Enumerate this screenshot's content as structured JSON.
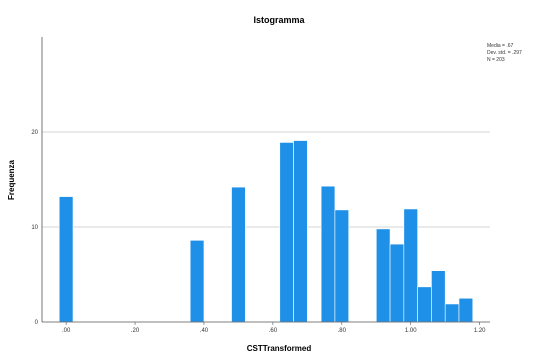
{
  "chart_data": {
    "type": "bar",
    "title": "Istogramma",
    "xlabel": "CSTTransformed",
    "ylabel": "Frequenza",
    "xlim": [
      -0.07,
      1.23
    ],
    "ylim": [
      0,
      30
    ],
    "grid": true,
    "bar_color": "#1e90e8",
    "x_ticks": [
      {
        "value": 0.0,
        "label": ".00"
      },
      {
        "value": 0.2,
        "label": ".20"
      },
      {
        "value": 0.4,
        "label": ".40"
      },
      {
        "value": 0.6,
        "label": ".60"
      },
      {
        "value": 0.8,
        "label": ".80"
      },
      {
        "value": 1.0,
        "label": "1.00"
      },
      {
        "value": 1.2,
        "label": "1.20"
      }
    ],
    "y_ticks": [
      {
        "value": 0,
        "label": "0"
      },
      {
        "value": 10,
        "label": "10"
      },
      {
        "value": 20,
        "label": "20"
      }
    ],
    "bin_width": 0.04,
    "bins": [
      {
        "x": 0.0,
        "count": 13.2
      },
      {
        "x": 0.5,
        "count": 14.2
      },
      {
        "x": 0.38,
        "count": 8.6
      },
      {
        "x": 0.64,
        "count": 18.9
      },
      {
        "x": 0.68,
        "count": 19.1
      },
      {
        "x": 0.76,
        "count": 14.3
      },
      {
        "x": 0.8,
        "count": 11.8
      },
      {
        "x": 0.92,
        "count": 9.8
      },
      {
        "x": 0.96,
        "count": 8.2
      },
      {
        "x": 1.0,
        "count": 11.9
      },
      {
        "x": 1.04,
        "count": 3.7
      },
      {
        "x": 1.08,
        "count": 5.4
      },
      {
        "x": 1.12,
        "count": 1.9
      },
      {
        "x": 1.16,
        "count": 2.5
      }
    ],
    "stats": [
      "Media = .67",
      "Dev. std. = .297",
      "N = 203"
    ],
    "legend_position": "top-right"
  }
}
